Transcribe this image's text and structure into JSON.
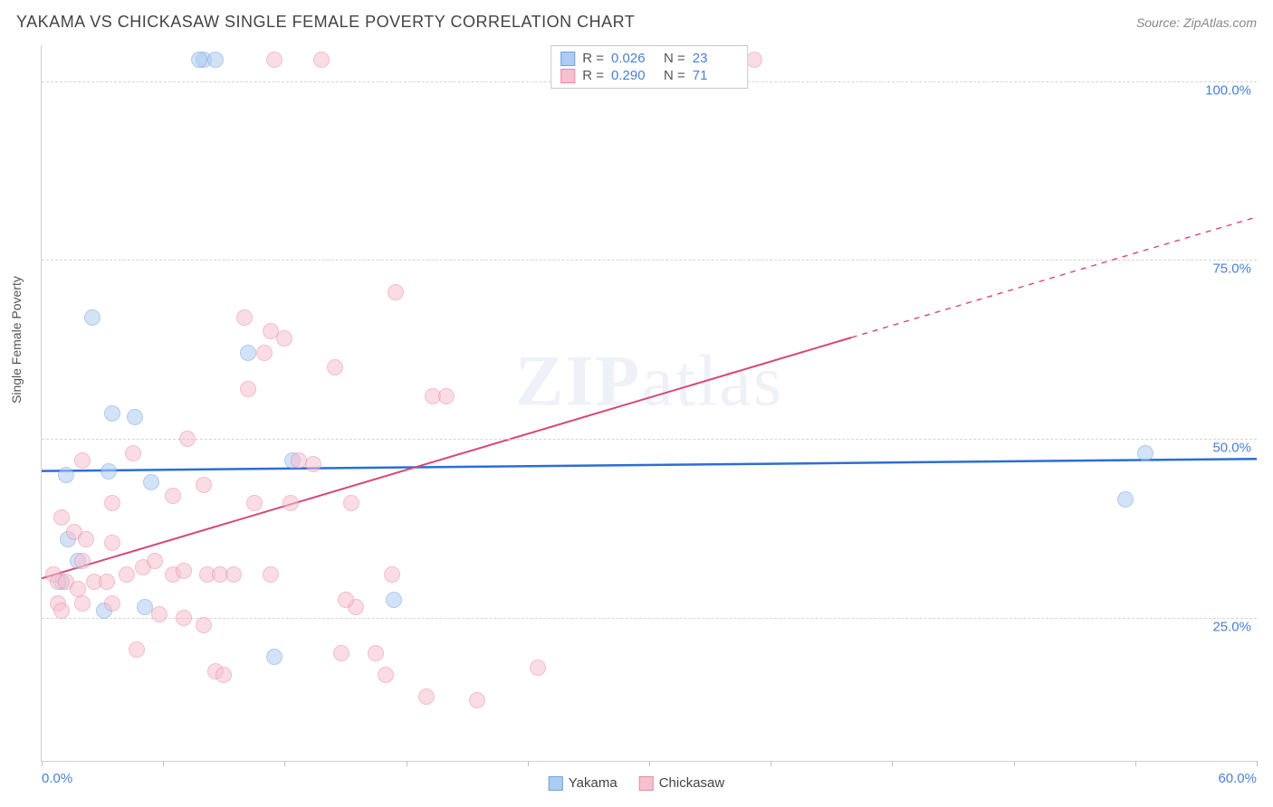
{
  "title": "YAKAMA VS CHICKASAW SINGLE FEMALE POVERTY CORRELATION CHART",
  "source_prefix": "Source: ",
  "source_name": "ZipAtlas.com",
  "ylabel": "Single Female Poverty",
  "watermark_a": "ZIP",
  "watermark_b": "atlas",
  "chart": {
    "type": "scatter",
    "background_color": "#ffffff",
    "grid_color": "#d5d5d5",
    "axis_color": "#d0d0d0",
    "xlim": [
      0,
      60
    ],
    "ylim": [
      5,
      105
    ],
    "xtick_positions": [
      0,
      6,
      12,
      18,
      24,
      30,
      36,
      42,
      48,
      54,
      60
    ],
    "xtick_labels": [
      "0.0%",
      "",
      "",
      "",
      "",
      "",
      "",
      "",
      "",
      "",
      "60.0%"
    ],
    "ytick_positions": [
      25,
      50,
      75,
      100
    ],
    "ytick_labels": [
      "25.0%",
      "50.0%",
      "75.0%",
      "100.0%"
    ],
    "label_color": "#4a80d6",
    "label_fontsize": 15,
    "marker_radius": 9,
    "marker_opacity": 0.55,
    "series": [
      {
        "name": "Yakama",
        "fill": "#aeccf2",
        "stroke": "#6fa3e0",
        "R": "0.026",
        "N": "23",
        "regression": {
          "x1": 0,
          "y1": 45.5,
          "x2": 60,
          "y2": 47.2,
          "color": "#2a6fd6",
          "width": 2.5,
          "solid_to_x": 60
        },
        "points": [
          [
            8,
            103
          ],
          [
            8.6,
            103
          ],
          [
            7.8,
            103
          ],
          [
            2.5,
            67
          ],
          [
            3.5,
            53.5
          ],
          [
            4.6,
            53
          ],
          [
            1.2,
            45
          ],
          [
            3.3,
            45.5
          ],
          [
            5.4,
            44
          ],
          [
            10.2,
            62
          ],
          [
            12.4,
            47
          ],
          [
            1.3,
            36
          ],
          [
            1.0,
            30
          ],
          [
            1.8,
            33
          ],
          [
            3.1,
            26
          ],
          [
            5.1,
            26.5
          ],
          [
            11.5,
            19.5
          ],
          [
            17.4,
            27.5
          ],
          [
            54.5,
            48
          ],
          [
            53.5,
            41.5
          ]
        ]
      },
      {
        "name": "Chickasaw",
        "fill": "#f6c1cf",
        "stroke": "#e88aa4",
        "R": "0.290",
        "N": "71",
        "regression": {
          "x1": 0,
          "y1": 30.5,
          "x2": 60,
          "y2": 81,
          "color": "#d6487a",
          "width": 2,
          "solid_to_x": 40
        },
        "points": [
          [
            11.5,
            103
          ],
          [
            13.8,
            103
          ],
          [
            35.2,
            103
          ],
          [
            17.5,
            70.5
          ],
          [
            10,
            67
          ],
          [
            11.3,
            65
          ],
          [
            12,
            64
          ],
          [
            14.5,
            60
          ],
          [
            11,
            62
          ],
          [
            10.2,
            57
          ],
          [
            13.4,
            46.5
          ],
          [
            12.7,
            47
          ],
          [
            19.3,
            56
          ],
          [
            20,
            56
          ],
          [
            7.2,
            50
          ],
          [
            4.5,
            48
          ],
          [
            2.0,
            47
          ],
          [
            8,
            43.5
          ],
          [
            3.5,
            41
          ],
          [
            6.5,
            42
          ],
          [
            10.5,
            41
          ],
          [
            12.3,
            41
          ],
          [
            1.0,
            39
          ],
          [
            1.6,
            37
          ],
          [
            2.2,
            36
          ],
          [
            3.5,
            35.5
          ],
          [
            2.0,
            33
          ],
          [
            0.6,
            31
          ],
          [
            0.8,
            30
          ],
          [
            1.2,
            30
          ],
          [
            1.8,
            29
          ],
          [
            2.6,
            30
          ],
          [
            3.2,
            30
          ],
          [
            4.2,
            31
          ],
          [
            5.0,
            32
          ],
          [
            5.6,
            33
          ],
          [
            6.5,
            31
          ],
          [
            7.0,
            31.5
          ],
          [
            8.2,
            31
          ],
          [
            8.8,
            31
          ],
          [
            9.5,
            31
          ],
          [
            11.3,
            31
          ],
          [
            0.8,
            27
          ],
          [
            1.0,
            26
          ],
          [
            2.0,
            27
          ],
          [
            3.5,
            27
          ],
          [
            5.8,
            25.5
          ],
          [
            7.0,
            25
          ],
          [
            8.0,
            24
          ],
          [
            4.7,
            20.5
          ],
          [
            8.6,
            17.5
          ],
          [
            9.0,
            17
          ],
          [
            14.8,
            20
          ],
          [
            15.3,
            41
          ],
          [
            15.5,
            26.5
          ],
          [
            16.5,
            20
          ],
          [
            17.3,
            31
          ],
          [
            17.0,
            17
          ],
          [
            19.0,
            14
          ],
          [
            21.5,
            13.5
          ],
          [
            15.0,
            27.5
          ],
          [
            24.5,
            18
          ]
        ]
      }
    ]
  },
  "legend_top": [
    {
      "swatch_fill": "#aeccf2",
      "swatch_border": "#6fa3e0",
      "R_label": "R =",
      "R_value": "0.026",
      "N_label": "N =",
      "N_value": "23"
    },
    {
      "swatch_fill": "#f6c1cf",
      "swatch_border": "#e88aa4",
      "R_label": "R =",
      "R_value": "0.290",
      "N_label": "N =",
      "N_value": "71"
    }
  ],
  "legend_bottom": [
    {
      "swatch_fill": "#aeccf2",
      "swatch_border": "#6fa3e0",
      "label": "Yakama"
    },
    {
      "swatch_fill": "#f6c1cf",
      "swatch_border": "#e88aa4",
      "label": "Chickasaw"
    }
  ]
}
